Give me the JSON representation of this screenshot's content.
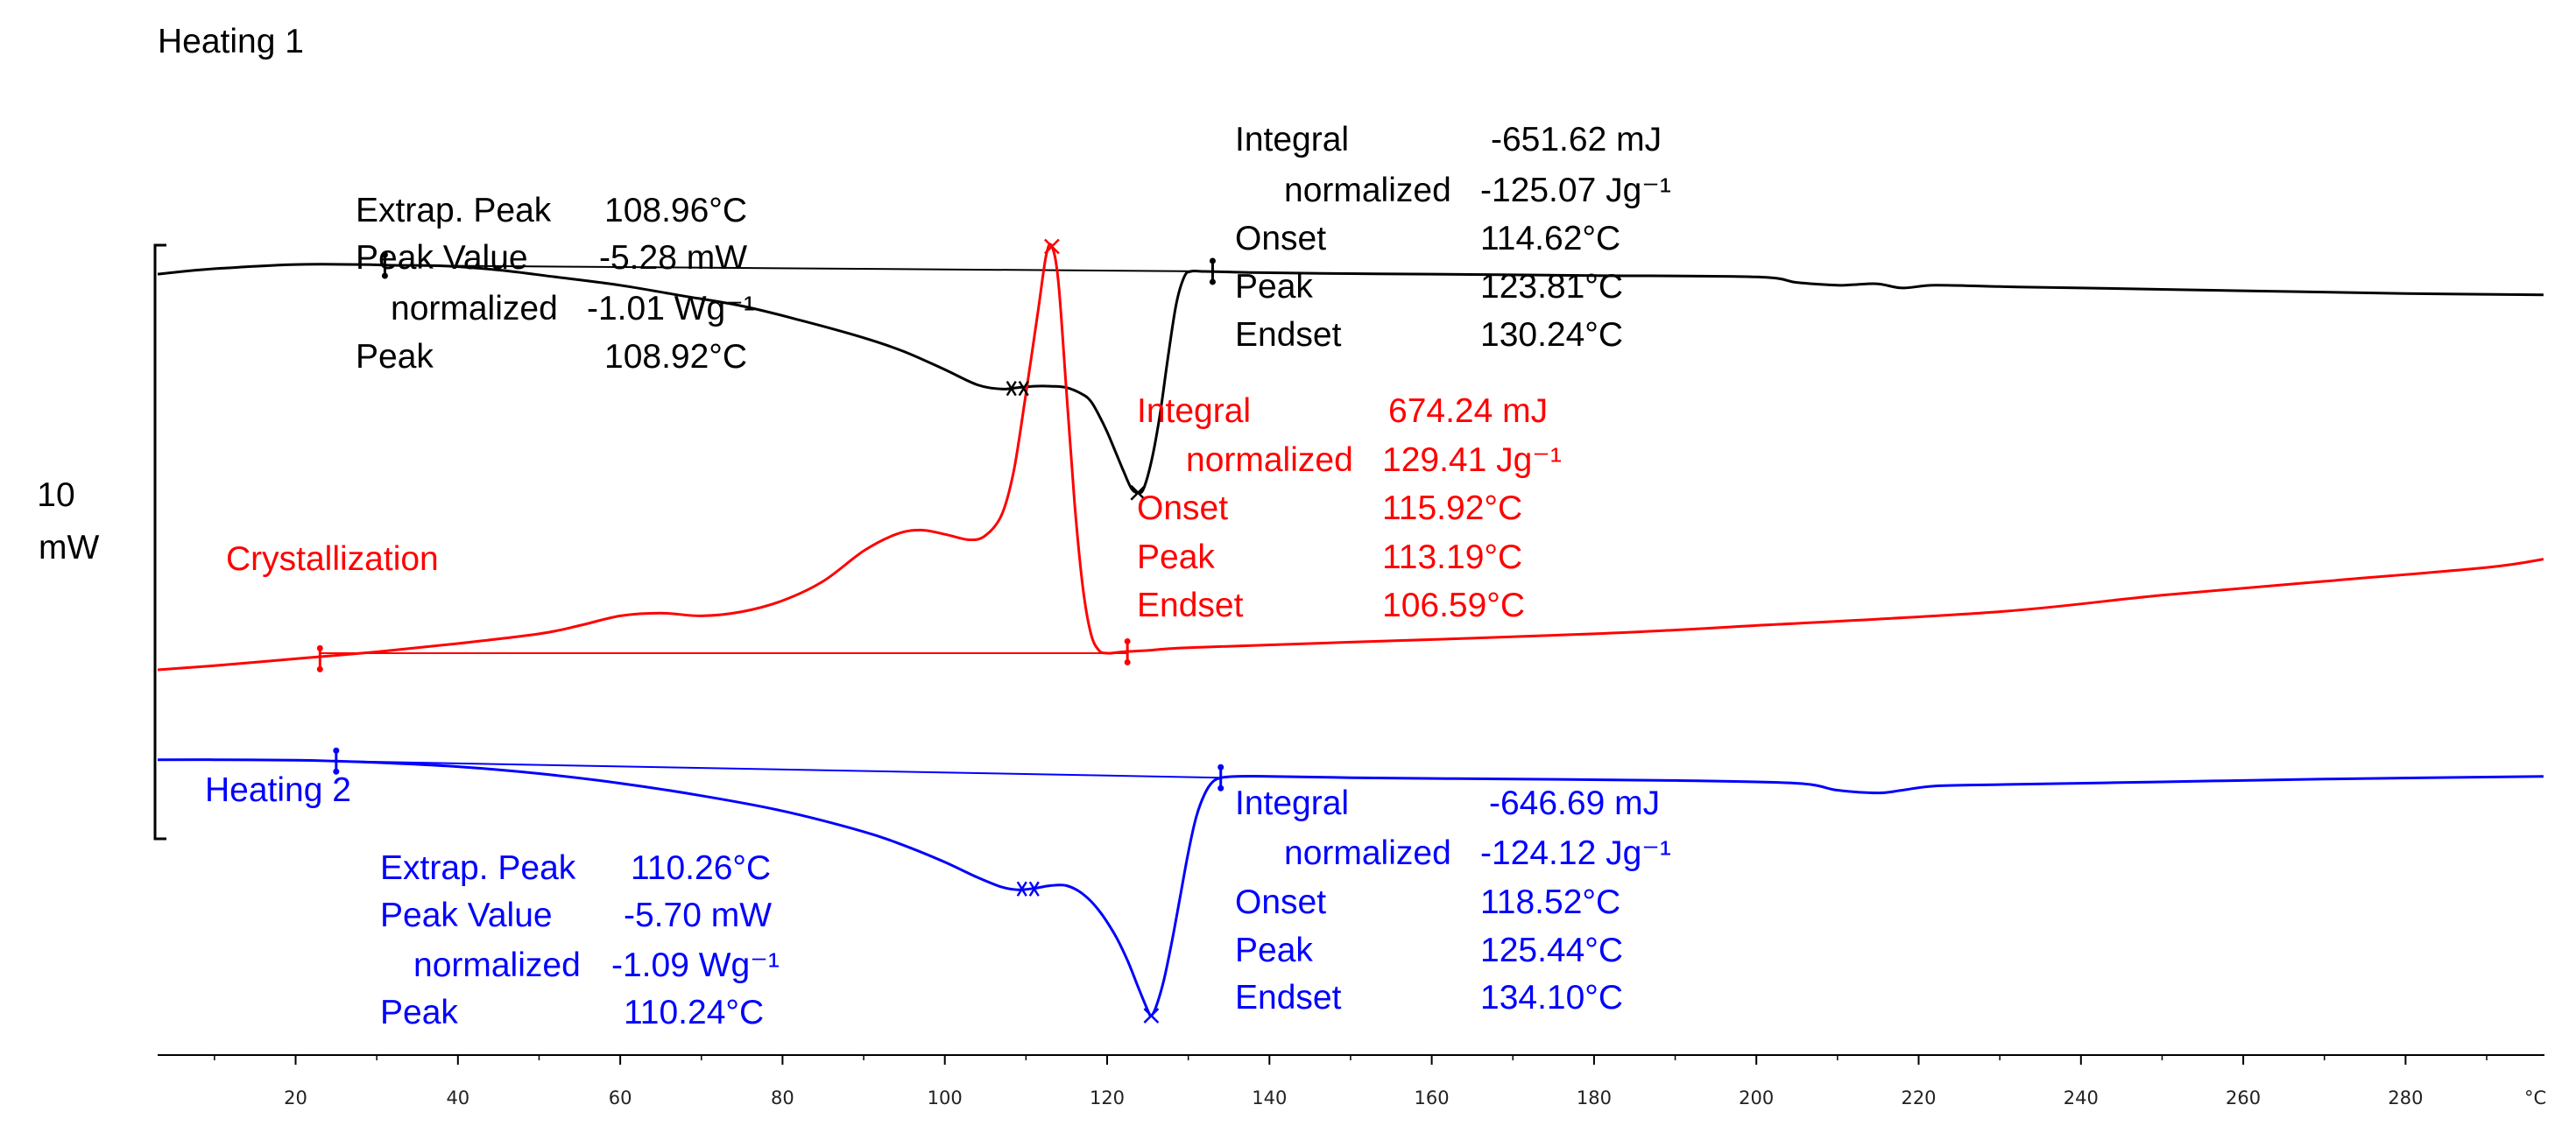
{
  "chart_data": {
    "type": "line",
    "title": "",
    "xlabel": "°C",
    "ylabel": "",
    "xlim": [
      3,
      297
    ],
    "x_ticks": [
      20,
      40,
      60,
      80,
      100,
      120,
      140,
      160,
      180,
      200,
      220,
      240,
      260,
      280
    ],
    "unit_label": "°C",
    "scale_bar": {
      "value": "10",
      "unit": "mW",
      "span_mw": 10
    },
    "colors": {
      "heating1": "#000000",
      "crystallization": "#ff0000",
      "heating2": "#0000ff"
    },
    "series": [
      {
        "id": "heating1",
        "name": "Heating 1",
        "color": "#000000",
        "x": [
          3,
          8,
          13,
          20,
          28,
          32,
          38,
          45,
          52,
          60,
          67,
          75,
          82,
          90,
          95,
          100,
          104,
          107,
          109,
          111,
          113,
          115,
          117,
          118,
          119,
          120,
          121,
          122,
          123,
          123.8,
          124.5,
          125.5,
          126.5,
          127.5,
          128.5,
          129.5,
          130.3,
          132,
          135,
          140,
          150,
          160,
          180,
          200,
          205,
          210,
          212,
          215,
          218,
          222,
          230,
          240,
          260,
          280,
          297
        ],
        "y": [
          14.3,
          14.45,
          14.55,
          14.65,
          14.65,
          14.62,
          14.6,
          14.45,
          14.2,
          13.9,
          13.55,
          13.15,
          12.65,
          12.0,
          11.5,
          10.85,
          10.3,
          10.15,
          10.2,
          10.25,
          10.25,
          10.2,
          9.95,
          9.7,
          9.2,
          8.6,
          7.9,
          7.2,
          6.55,
          6.4,
          6.55,
          7.6,
          9.2,
          11.3,
          13.2,
          14.2,
          14.4,
          14.4,
          14.38,
          14.35,
          14.32,
          14.3,
          14.25,
          14.2,
          14.0,
          13.9,
          13.92,
          13.95,
          13.8,
          13.9,
          13.85,
          13.8,
          13.7,
          13.6,
          13.55
        ],
        "annotations": {
          "left": [
            {
              "label": "Extrap. Peak",
              "value": "108.96°C"
            },
            {
              "label": "Peak Value",
              "value": "-5.28 mW"
            },
            {
              "label": "normalized",
              "value": "-1.01 Wg⁻¹"
            },
            {
              "label": "Peak",
              "value": "108.92°C"
            }
          ],
          "right": [
            {
              "label": "Integral",
              "value": "-651.62 mJ"
            },
            {
              "label": "normalized",
              "value": "-125.07 Jg⁻¹"
            },
            {
              "label": "Onset",
              "value": "114.62°C"
            },
            {
              "label": "Peak",
              "value": "123.81°C"
            },
            {
              "label": "Endset",
              "value": "130.24°C"
            }
          ]
        }
      },
      {
        "id": "crystallization",
        "name": "Crystallization",
        "color": "#ff0000",
        "x": [
          3,
          10,
          20,
          30,
          40,
          50,
          55,
          60,
          65,
          70,
          75,
          80,
          85,
          90,
          94,
          97,
          100,
          103,
          105,
          107,
          108.5,
          110,
          111.5,
          112.5,
          113.2,
          114,
          115,
          116,
          117,
          118,
          119,
          120,
          121,
          122,
          125,
          130,
          150,
          180,
          200,
          230,
          250,
          270,
          290,
          297
        ],
        "y": [
          0.0,
          0.15,
          0.4,
          0.65,
          0.95,
          1.3,
          1.6,
          1.95,
          2.05,
          1.95,
          2.1,
          2.5,
          3.2,
          4.3,
          4.9,
          5.05,
          4.9,
          4.7,
          4.85,
          5.6,
          7.2,
          10.0,
          13.0,
          15.0,
          15.3,
          14.0,
          10.0,
          6.0,
          3.0,
          1.3,
          0.7,
          0.6,
          0.62,
          0.65,
          0.7,
          0.8,
          1.0,
          1.3,
          1.6,
          2.1,
          2.7,
          3.2,
          3.7,
          4.0
        ],
        "annotations": {
          "right": [
            {
              "label": "Integral",
              "value": "674.24 mJ"
            },
            {
              "label": "normalized",
              "value": "129.41 Jg⁻¹"
            },
            {
              "label": "Onset",
              "value": "115.92°C"
            },
            {
              "label": "Peak",
              "value": "113.19°C"
            },
            {
              "label": "Endset",
              "value": "106.59°C"
            }
          ]
        }
      },
      {
        "id": "heating2",
        "name": "Heating 2",
        "color": "#0000ff",
        "x": [
          3,
          10,
          20,
          25,
          30,
          40,
          50,
          60,
          70,
          80,
          90,
          95,
          100,
          104,
          107,
          109,
          111,
          113,
          115,
          117,
          119,
          121,
          122.5,
          124,
          125,
          125.4,
          126,
          127,
          128,
          129,
          130,
          131,
          132,
          133,
          134.1,
          136,
          140,
          150,
          170,
          190,
          205,
          210,
          215,
          218,
          222,
          230,
          250,
          270,
          297
        ],
        "y": [
          -3.25,
          -3.25,
          -3.27,
          -3.3,
          -3.35,
          -3.5,
          -3.75,
          -4.1,
          -4.55,
          -5.1,
          -5.85,
          -6.35,
          -6.95,
          -7.5,
          -7.85,
          -7.95,
          -7.9,
          -7.8,
          -7.8,
          -8.1,
          -8.7,
          -9.6,
          -10.5,
          -11.6,
          -12.3,
          -12.5,
          -12.2,
          -11.2,
          -9.8,
          -8.2,
          -6.6,
          -5.3,
          -4.5,
          -4.05,
          -3.9,
          -3.85,
          -3.85,
          -3.9,
          -3.95,
          -4.0,
          -4.1,
          -4.35,
          -4.45,
          -4.35,
          -4.2,
          -4.15,
          -4.05,
          -3.95,
          -3.85
        ],
        "annotations": {
          "left": [
            {
              "label": "Extrap. Peak",
              "value": "110.26°C"
            },
            {
              "label": "Peak Value",
              "value": "-5.70 mW"
            },
            {
              "label": "normalized",
              "value": "-1.09 Wg⁻¹"
            },
            {
              "label": "Peak",
              "value": "110.24°C"
            }
          ],
          "right": [
            {
              "label": "Integral",
              "value": "-646.69 mJ"
            },
            {
              "label": "normalized",
              "value": "-124.12 Jg⁻¹"
            },
            {
              "label": "Onset",
              "value": "118.52°C"
            },
            {
              "label": "Peak",
              "value": "125.44°C"
            },
            {
              "label": "Endset",
              "value": "134.10°C"
            }
          ]
        }
      }
    ],
    "baselines": [
      {
        "series": "heating1",
        "x": [
          31,
          133
        ],
        "y": [
          14.62,
          14.4
        ]
      },
      {
        "series": "crystallization",
        "x": [
          23,
          122.5
        ],
        "y": [
          0.6,
          0.6
        ]
      },
      {
        "series": "heating2",
        "x": [
          25,
          134
        ],
        "y": [
          -3.3,
          -3.9
        ]
      }
    ],
    "markers": [
      {
        "series": "heating1",
        "type": "limit",
        "x": 31,
        "y": 14.62
      },
      {
        "series": "heating1",
        "type": "limit",
        "x": 133,
        "y": 14.4
      },
      {
        "series": "heating1",
        "type": "extrap",
        "x": 108.96,
        "y": 10.17
      },
      {
        "series": "heating1",
        "type": "peak-cross",
        "x": 123.81,
        "y": 6.4
      },
      {
        "series": "crystallization",
        "type": "limit",
        "x": 23,
        "y": 0.4
      },
      {
        "series": "crystallization",
        "type": "limit",
        "x": 122.5,
        "y": 0.65
      },
      {
        "series": "crystallization",
        "type": "peak-cross",
        "x": 113.19,
        "y": 15.3
      },
      {
        "series": "heating2",
        "type": "limit",
        "x": 25,
        "y": -3.3
      },
      {
        "series": "heating2",
        "type": "limit",
        "x": 134,
        "y": -3.9
      },
      {
        "series": "heating2",
        "type": "extrap",
        "x": 110.26,
        "y": -7.92
      },
      {
        "series": "heating2",
        "type": "peak-cross",
        "x": 125.44,
        "y": -12.5
      }
    ]
  }
}
